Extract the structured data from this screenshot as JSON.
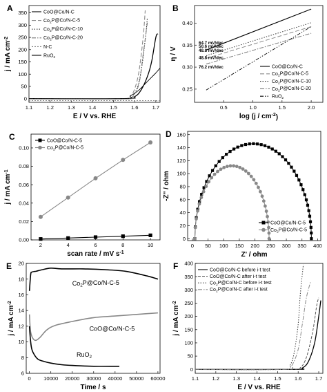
{
  "chart_data": [
    {
      "panel": "A",
      "type": "line",
      "xlabel": "E / V vs. RHE",
      "ylabel": "j / mA cm-2",
      "xlim": [
        1.1,
        1.72
      ],
      "ylim": [
        -15,
        380
      ],
      "xticks": [
        "1.1",
        "1.2",
        "1.3",
        "1.4",
        "1.5",
        "1.6",
        "1.7"
      ],
      "yticks": [
        "0",
        "50",
        "100",
        "150",
        "200",
        "250",
        "300",
        "350"
      ],
      "legend_position": "top-left",
      "series": [
        {
          "name": "CoO@Co/N-C",
          "color": "#000000",
          "dash": "",
          "width": 1.3,
          "x": [
            1.1,
            1.55,
            1.6,
            1.63,
            1.66,
            1.68,
            1.7,
            1.71
          ],
          "y": [
            0,
            0,
            8,
            35,
            90,
            150,
            250,
            265
          ]
        },
        {
          "name": "Co2P@Co/N-C-5",
          "color": "#888888",
          "dash": "6,3",
          "width": 1.1,
          "x": [
            1.1,
            1.55,
            1.58,
            1.6,
            1.62,
            1.64,
            1.65
          ],
          "y": [
            0,
            0,
            10,
            40,
            110,
            250,
            360
          ]
        },
        {
          "name": "Co2P@Co/N-C-10",
          "color": "#333333",
          "dash": "1.5,2",
          "width": 1.1,
          "x": [
            1.1,
            1.56,
            1.59,
            1.61,
            1.63,
            1.65,
            1.66
          ],
          "y": [
            0,
            0,
            12,
            40,
            110,
            240,
            330
          ]
        },
        {
          "name": "Co2P@Co/N-C-20",
          "color": "#777777",
          "dash": "6,2,1.5,2",
          "width": 1.1,
          "x": [
            1.1,
            1.56,
            1.59,
            1.62,
            1.64,
            1.66
          ],
          "y": [
            0,
            0,
            10,
            60,
            180,
            310
          ]
        },
        {
          "name": "N-C",
          "color": "#888888",
          "dash": "2,2",
          "width": 1,
          "x": [
            1.1,
            1.72
          ],
          "y": [
            -8,
            -8
          ]
        },
        {
          "name": "RuO2",
          "color": "#000000",
          "dash": "",
          "width": 0.9,
          "x": [
            1.1,
            1.54,
            1.58,
            1.62,
            1.66,
            1.7,
            1.72
          ],
          "y": [
            0,
            0,
            12,
            35,
            70,
            105,
            125
          ]
        }
      ]
    },
    {
      "panel": "B",
      "type": "line",
      "xlabel": "log (j / cm-2)",
      "ylabel": "η / V",
      "xlim": [
        0,
        2.2
      ],
      "ylim": [
        0.22,
        0.44
      ],
      "xticks": [
        "0.5",
        "1.0",
        "1.5",
        "2.0"
      ],
      "yticks": [
        "0.25",
        "0.30",
        "0.35",
        "0.40"
      ],
      "legend_position": "bottom-right",
      "annotations": [
        "64.7 mV/dec",
        "50.6 mV/dec",
        "48.8 mV/dec",
        "48.8 mV/dec",
        "76.2 mV/dec"
      ],
      "series": [
        {
          "name": "CoO@Co/N-C",
          "color": "#000000",
          "dash": "",
          "width": 1.1,
          "x": [
            0.2,
            2.0
          ],
          "y": [
            0.339,
            0.432
          ]
        },
        {
          "name": "Co2P@Co/N-C-5",
          "color": "#888888",
          "dash": "6,3",
          "width": 1,
          "x": [
            0.2,
            2.0
          ],
          "y": [
            0.32,
            0.392
          ]
        },
        {
          "name": "Co2P@Co/N-C-10",
          "color": "#333333",
          "dash": "1.5,2",
          "width": 1,
          "x": [
            0.2,
            2.0
          ],
          "y": [
            0.326,
            0.401
          ]
        },
        {
          "name": "Co2P@Co/N-C-20",
          "color": "#777777",
          "dash": "6,2,1.5,2",
          "width": 1,
          "x": [
            0.2,
            2.0
          ],
          "y": [
            0.307,
            0.377
          ]
        },
        {
          "name": "RuO2",
          "color": "#000000",
          "dash": "5,2,1.5,2,1.5,2",
          "width": 0.9,
          "x": [
            0.2,
            2.0
          ],
          "y": [
            0.248,
            0.392
          ]
        }
      ]
    },
    {
      "panel": "C",
      "type": "line",
      "xlabel": "scan rate / mV s-1",
      "ylabel": "j / mA cm-1",
      "xlim": [
        1.3,
        10.7
      ],
      "ylim": [
        0,
        0.115
      ],
      "xticks": [
        "2",
        "4",
        "6",
        "8",
        "10"
      ],
      "yticks": [
        "0.00",
        "0.02",
        "0.04",
        "0.06",
        "0.08",
        "0.10"
      ],
      "legend_position": "top-left",
      "series": [
        {
          "name": "CoO@Co/N-C-5",
          "color": "#000000",
          "marker": "square",
          "x": [
            2,
            4,
            6,
            8,
            10
          ],
          "y": [
            0.001,
            0.002,
            0.003,
            0.004,
            0.005
          ]
        },
        {
          "name": "Co2P@Co/N-C-5",
          "color": "#888888",
          "marker": "circle",
          "x": [
            2,
            4,
            6,
            8,
            10
          ],
          "y": [
            0.025,
            0.046,
            0.067,
            0.087,
            0.106
          ]
        }
      ]
    },
    {
      "panel": "D",
      "type": "scatter",
      "xlabel": "Z' / ohm",
      "ylabel": "-Z'' / ohm",
      "xlim": [
        -15,
        410
      ],
      "ylim": [
        -3,
        165
      ],
      "xticks": [
        "0",
        "50",
        "100",
        "150",
        "200",
        "250",
        "300",
        "350",
        "400"
      ],
      "yticks": [
        "0",
        "20",
        "40",
        "60",
        "80",
        "100",
        "120",
        "140",
        "160"
      ],
      "legend_position": "bottom-right",
      "series": [
        {
          "name": "CoO@Co/N-C-5",
          "color": "#000000",
          "marker": "square",
          "center": 222,
          "radius": 155,
          "ybottom": 48,
          "xmin": 8,
          "xmax": 380,
          "height": 146,
          "npoints": 46
        },
        {
          "name": "Co2P@Co/N-C-5",
          "color": "#888888",
          "marker": "circle",
          "center": 140,
          "radius": 112,
          "ybottom": 47,
          "xmin": 8,
          "xmax": 245,
          "height": 112,
          "npoints": 36
        }
      ]
    },
    {
      "panel": "E",
      "type": "line",
      "xlabel": "Time / s",
      "ylabel": "j / mA cm-2",
      "xlim": [
        -1500,
        61000
      ],
      "ylim": [
        6,
        20
      ],
      "xticks": [
        "0",
        "10000",
        "20000",
        "30000",
        "40000",
        "50000",
        "60000"
      ],
      "yticks": [
        "6",
        "8",
        "10",
        "12",
        "14",
        "16",
        "18",
        "20"
      ],
      "labels": [
        "Co2P@Co/N-C-5",
        "CoO@Co/N-C-5",
        "RuO2"
      ],
      "series": [
        {
          "name": "Co2P@Co/N-C-5",
          "color": "#000000",
          "x": [
            0,
            600,
            1200,
            3000,
            6000,
            10000,
            15000,
            25000,
            35000,
            45000,
            55000,
            60000
          ],
          "y": [
            16.5,
            18.6,
            18.9,
            19.0,
            19.2,
            19.4,
            19.3,
            19.3,
            19.2,
            19.0,
            18.4,
            18.0
          ]
        },
        {
          "name": "CoO@Co/N-C-5",
          "color": "#888888",
          "x": [
            0,
            500,
            1500,
            3000,
            5000,
            8000,
            12000,
            20000,
            30000,
            40000,
            50000,
            60000
          ],
          "y": [
            13.5,
            11.4,
            10.5,
            10.2,
            10.6,
            11.5,
            12.1,
            12.6,
            13.1,
            13.3,
            13.5,
            13.7
          ]
        },
        {
          "name": "RuO2",
          "color": "#000000",
          "x": [
            0,
            400,
            1000,
            2000,
            4000,
            7000,
            10000,
            15000,
            20000,
            30000,
            40000,
            42000
          ],
          "y": [
            12.0,
            10.5,
            9.2,
            8.5,
            7.8,
            7.5,
            7.3,
            7.1,
            7.0,
            6.9,
            6.9,
            6.9
          ]
        }
      ]
    },
    {
      "panel": "F",
      "type": "line",
      "xlabel": "E / V vs. RHE",
      "ylabel": "j / mA cm-2",
      "xlim": [
        1.1,
        1.72
      ],
      "ylim": [
        -15,
        400
      ],
      "xticks": [
        "1.1",
        "1.2",
        "1.3",
        "1.4",
        "1.5",
        "1.6",
        "1.7"
      ],
      "yticks": [
        "0",
        "50",
        "100",
        "150",
        "200",
        "250",
        "300",
        "350",
        "400"
      ],
      "legend_position": "top-left",
      "series": [
        {
          "name": "CoO@Co/N-C before i-t test",
          "color": "#000000",
          "dash": "",
          "width": 1.3,
          "x": [
            1.1,
            1.58,
            1.62,
            1.65,
            1.68,
            1.7,
            1.71
          ],
          "y": [
            0,
            0,
            5,
            30,
            100,
            200,
            260
          ]
        },
        {
          "name": "CoO@Co/N-C after i-t test",
          "color": "#555555",
          "dash": "4,2",
          "width": 1,
          "x": [
            1.1,
            1.57,
            1.61,
            1.64,
            1.67,
            1.69,
            1.7
          ],
          "y": [
            0,
            0,
            6,
            45,
            140,
            240,
            270
          ]
        },
        {
          "name": "Co2P@Co/N-C before i-t test",
          "color": "#444444",
          "dash": "1.5,2",
          "width": 1.1,
          "x": [
            1.1,
            1.53,
            1.56,
            1.58,
            1.6,
            1.61,
            1.625
          ],
          "y": [
            0,
            0,
            15,
            60,
            170,
            280,
            395
          ]
        },
        {
          "name": "Co2P@Co/N-C after i-t test",
          "color": "#888888",
          "dash": "6,2,1.5,2",
          "width": 1,
          "x": [
            1.1,
            1.54,
            1.57,
            1.6,
            1.62,
            1.64,
            1.66
          ],
          "y": [
            0,
            0,
            15,
            75,
            170,
            270,
            330
          ]
        }
      ]
    }
  ]
}
